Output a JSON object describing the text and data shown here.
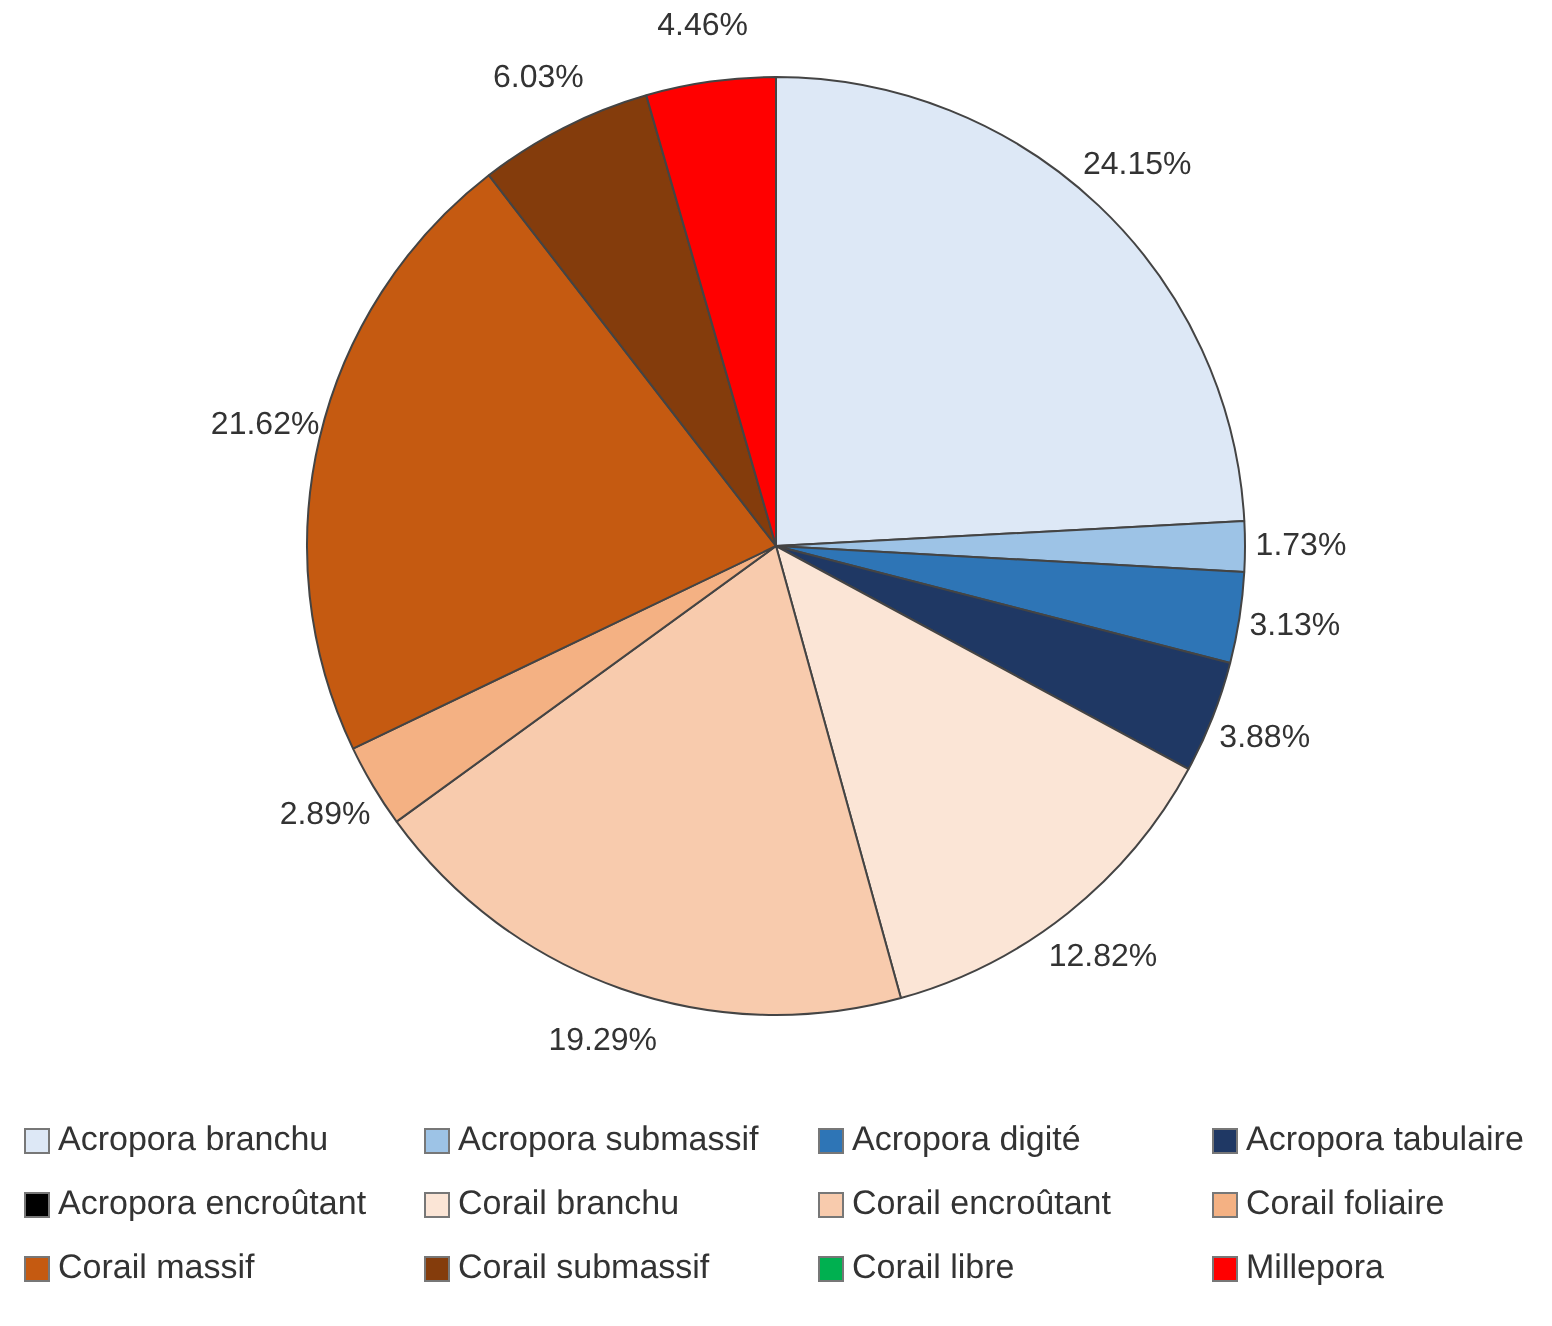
{
  "chart_data": {
    "type": "pie",
    "categories": [
      "Acropora branchu",
      "Acropora submassif",
      "Acropora digité",
      "Acropora tabulaire",
      "Acropora encroûtant",
      "Corail branchu",
      "Corail encroûtant",
      "Corail foliaire",
      "Corail massif",
      "Corail submassif",
      "Corail libre",
      "Millepora"
    ],
    "values": [
      24.15,
      1.73,
      3.13,
      3.88,
      0,
      12.82,
      19.29,
      2.89,
      21.62,
      6.03,
      0,
      4.46
    ],
    "value_labels": [
      "24.15%",
      "1.73%",
      "3.13%",
      "3.88%",
      null,
      "12.82%",
      "19.29%",
      "2.89%",
      "21.62%",
      "6.03%",
      null,
      "4.46%"
    ],
    "colors": [
      "#dde8f6",
      "#9dc3e6",
      "#2e75b6",
      "#1f3864",
      "#000000",
      "#fbe5d6",
      "#f8cbad",
      "#f4b183",
      "#c55a11",
      "#843c0c",
      "#00b050",
      "#ff0000"
    ],
    "legend": "bottom"
  }
}
